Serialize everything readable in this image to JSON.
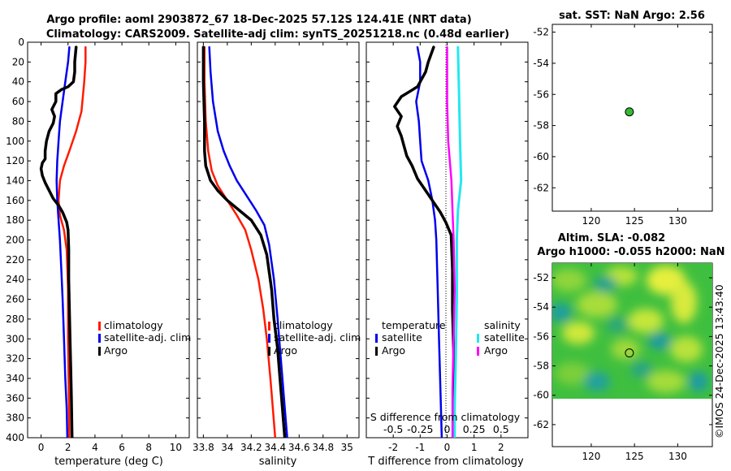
{
  "titles": {
    "line1": "Argo profile: aoml 2903872_67 18-Dec-2025 57.12S 124.41E (NRT data)",
    "line2": "Climatology: CARS2009. Satellite-adj clim: synTS_20251218.nc (0.48d earlier)"
  },
  "footer_stamp": "©IMOS 24-Dec-2025 13:43:40",
  "colors": {
    "climatology": "#ff1a00",
    "satellite": "#0000ee",
    "argo": "#000000",
    "salinity_sat": "#22e8f0",
    "salinity_argo": "#ff00ff"
  },
  "chart_data": [
    {
      "type": "line",
      "id": "temperature",
      "xlabel": "temperature (deg C)",
      "ylabel": "",
      "xlim": [
        -1,
        11
      ],
      "ylim": [
        400,
        0
      ],
      "xticks": [
        0,
        2,
        4,
        6,
        8,
        10
      ],
      "xtick_labels": [
        "0",
        "2",
        "4",
        "6",
        "8",
        "10"
      ],
      "yticks": [
        0,
        20,
        40,
        60,
        80,
        100,
        120,
        140,
        160,
        180,
        200,
        220,
        240,
        260,
        280,
        300,
        320,
        340,
        360,
        380,
        400
      ],
      "ytick_labels": [
        "0",
        "20",
        "40",
        "60",
        "80",
        "100",
        "120",
        "140",
        "160",
        "180",
        "200",
        "220",
        "240",
        "260",
        "280",
        "300",
        "320",
        "340",
        "360",
        "380",
        "400"
      ],
      "legend": [
        "climatology",
        "satellite-adj. clim",
        "Argo"
      ],
      "series": [
        {
          "name": "climatology",
          "color": "#ff1a00",
          "points": [
            [
              3.3,
              5
            ],
            [
              3.3,
              20
            ],
            [
              3.2,
              40
            ],
            [
              3.1,
              55
            ],
            [
              3.0,
              70
            ],
            [
              2.6,
              90
            ],
            [
              2.1,
              110
            ],
            [
              1.7,
              125
            ],
            [
              1.4,
              140
            ],
            [
              1.3,
              160
            ],
            [
              1.4,
              175
            ],
            [
              1.7,
              190
            ],
            [
              1.9,
              210
            ],
            [
              2.0,
              250
            ],
            [
              2.0,
              300
            ],
            [
              2.05,
              350
            ],
            [
              2.1,
              400
            ]
          ]
        },
        {
          "name": "satellite-adj. clim",
          "color": "#0000ee",
          "points": [
            [
              2.1,
              5
            ],
            [
              2.0,
              20
            ],
            [
              1.8,
              40
            ],
            [
              1.6,
              60
            ],
            [
              1.4,
              80
            ],
            [
              1.3,
              100
            ],
            [
              1.2,
              120
            ],
            [
              1.15,
              140
            ],
            [
              1.2,
              160
            ],
            [
              1.3,
              180
            ],
            [
              1.4,
              200
            ],
            [
              1.5,
              230
            ],
            [
              1.6,
              260
            ],
            [
              1.7,
              300
            ],
            [
              1.8,
              340
            ],
            [
              1.9,
              370
            ],
            [
              1.95,
              400
            ]
          ]
        },
        {
          "name": "Argo",
          "color": "#000000",
          "points": [
            [
              2.6,
              5
            ],
            [
              2.5,
              20
            ],
            [
              2.5,
              30
            ],
            [
              2.4,
              40
            ],
            [
              2.0,
              45
            ],
            [
              1.5,
              48
            ],
            [
              1.1,
              52
            ],
            [
              1.1,
              60
            ],
            [
              0.8,
              68
            ],
            [
              1.0,
              75
            ],
            [
              0.9,
              82
            ],
            [
              0.6,
              90
            ],
            [
              0.4,
              100
            ],
            [
              0.3,
              110
            ],
            [
              0.3,
              118
            ],
            [
              0.1,
              122
            ],
            [
              0.0,
              128
            ],
            [
              0.1,
              135
            ],
            [
              0.3,
              142
            ],
            [
              0.6,
              150
            ],
            [
              0.9,
              158
            ],
            [
              1.3,
              165
            ],
            [
              1.6,
              172
            ],
            [
              1.9,
              182
            ],
            [
              2.0,
              190
            ],
            [
              2.05,
              210
            ],
            [
              2.05,
              240
            ],
            [
              2.1,
              270
            ],
            [
              2.15,
              300
            ],
            [
              2.2,
              330
            ],
            [
              2.25,
              360
            ],
            [
              2.3,
              400
            ]
          ]
        }
      ]
    },
    {
      "type": "line",
      "id": "salinity",
      "xlabel": "salinity",
      "xlim": [
        33.75,
        35.1
      ],
      "ylim": [
        400,
        0
      ],
      "xticks": [
        33.8,
        34,
        34.2,
        34.4,
        34.6,
        34.8,
        35
      ],
      "xtick_labels": [
        "33.8",
        "34",
        "34.2",
        "34.4",
        "34.6",
        "34.8",
        "35"
      ],
      "legend": [
        "climatology",
        "satellite-adj. clim",
        "Argo"
      ],
      "series": [
        {
          "name": "climatology",
          "color": "#ff1a00",
          "points": [
            [
              33.81,
              5
            ],
            [
              33.81,
              40
            ],
            [
              33.82,
              80
            ],
            [
              33.84,
              110
            ],
            [
              33.87,
              130
            ],
            [
              33.92,
              145
            ],
            [
              34.0,
              160
            ],
            [
              34.08,
              175
            ],
            [
              34.15,
              190
            ],
            [
              34.2,
              210
            ],
            [
              34.26,
              240
            ],
            [
              34.3,
              270
            ],
            [
              34.33,
              300
            ],
            [
              34.36,
              340
            ],
            [
              34.38,
              370
            ],
            [
              34.4,
              400
            ]
          ]
        },
        {
          "name": "satellite-adj. clim",
          "color": "#0000ee",
          "points": [
            [
              33.85,
              5
            ],
            [
              33.86,
              30
            ],
            [
              33.88,
              60
            ],
            [
              33.92,
              90
            ],
            [
              33.97,
              110
            ],
            [
              34.02,
              125
            ],
            [
              34.08,
              140
            ],
            [
              34.16,
              155
            ],
            [
              34.24,
              170
            ],
            [
              34.31,
              185
            ],
            [
              34.35,
              205
            ],
            [
              34.39,
              240
            ],
            [
              34.42,
              280
            ],
            [
              34.44,
              310
            ],
            [
              34.46,
              340
            ],
            [
              34.48,
              370
            ],
            [
              34.5,
              400
            ]
          ]
        },
        {
          "name": "Argo",
          "color": "#000000",
          "points": [
            [
              33.8,
              5
            ],
            [
              33.8,
              40
            ],
            [
              33.81,
              80
            ],
            [
              33.81,
              110
            ],
            [
              33.82,
              125
            ],
            [
              33.86,
              140
            ],
            [
              33.92,
              150
            ],
            [
              34.0,
              160
            ],
            [
              34.1,
              170
            ],
            [
              34.2,
              180
            ],
            [
              34.28,
              195
            ],
            [
              34.33,
              215
            ],
            [
              34.37,
              250
            ],
            [
              34.39,
              280
            ],
            [
              34.42,
              310
            ],
            [
              34.44,
              340
            ],
            [
              34.46,
              370
            ],
            [
              34.48,
              400
            ]
          ]
        }
      ]
    },
    {
      "type": "line",
      "id": "difference",
      "xlabel": "T difference from climatology",
      "top_axis_label": "S difference from climatology",
      "xlim": [
        -3,
        3
      ],
      "ylim": [
        400,
        0
      ],
      "xticks": [
        -2,
        -1,
        0,
        1,
        2
      ],
      "xtick_labels": [
        "-2",
        "-1",
        "0",
        "1",
        "2"
      ],
      "salinity_ticks": [
        -0.5,
        -0.25,
        0,
        0.25,
        0.5
      ],
      "salinity_tick_labels": [
        "-0.5",
        "-0.25",
        "0",
        "0.25",
        "0.5"
      ],
      "legend_temperature": {
        "title": "temperature",
        "items": [
          "satellite",
          "Argo"
        ]
      },
      "legend_salinity": {
        "title": "salinity",
        "items": [
          "satellite",
          "Argo"
        ]
      },
      "series": [
        {
          "name": "T satellite",
          "color": "#0000ee",
          "points": [
            [
              -1.1,
              5
            ],
            [
              -1.0,
              20
            ],
            [
              -1.0,
              40
            ],
            [
              -1.15,
              60
            ],
            [
              -1.05,
              80
            ],
            [
              -1.0,
              100
            ],
            [
              -0.95,
              120
            ],
            [
              -0.7,
              140
            ],
            [
              -0.55,
              160
            ],
            [
              -0.45,
              180
            ],
            [
              -0.4,
              200
            ],
            [
              -0.35,
              250
            ],
            [
              -0.3,
              300
            ],
            [
              -0.25,
              350
            ],
            [
              -0.2,
              400
            ]
          ]
        },
        {
          "name": "T Argo",
          "color": "#000000",
          "points": [
            [
              -0.5,
              5
            ],
            [
              -0.7,
              20
            ],
            [
              -0.8,
              30
            ],
            [
              -1.1,
              45
            ],
            [
              -1.7,
              55
            ],
            [
              -1.95,
              65
            ],
            [
              -1.7,
              75
            ],
            [
              -1.85,
              85
            ],
            [
              -1.7,
              95
            ],
            [
              -1.6,
              105
            ],
            [
              -1.5,
              115
            ],
            [
              -1.3,
              125
            ],
            [
              -1.1,
              138
            ],
            [
              -0.8,
              150
            ],
            [
              -0.5,
              162
            ],
            [
              -0.25,
              172
            ],
            [
              -0.05,
              182
            ],
            [
              0.15,
              195
            ],
            [
              0.2,
              230
            ],
            [
              0.2,
              270
            ],
            [
              0.25,
              320
            ],
            [
              0.25,
              360
            ],
            [
              0.25,
              400
            ]
          ]
        },
        {
          "name": "S satellite",
          "color": "#22e8f0",
          "points": [
            [
              0.1,
              5
            ],
            [
              0.11,
              50
            ],
            [
              0.12,
              100
            ],
            [
              0.13,
              140
            ],
            [
              0.1,
              170
            ],
            [
              0.09,
              200
            ],
            [
              0.09,
              260
            ],
            [
              0.08,
              320
            ],
            [
              0.07,
              370
            ],
            [
              0.07,
              400
            ]
          ]
        },
        {
          "name": "S Argo",
          "color": "#ff00ff",
          "points": [
            [
              0.0,
              5
            ],
            [
              0.0,
              60
            ],
            [
              0.01,
              100
            ],
            [
              0.04,
              140
            ],
            [
              0.05,
              170
            ],
            [
              0.06,
              200
            ],
            [
              0.07,
              250
            ],
            [
              0.06,
              300
            ],
            [
              0.05,
              350
            ],
            [
              0.05,
              400
            ]
          ]
        }
      ]
    },
    {
      "type": "scatter",
      "id": "sst_map",
      "title": "sat. SST: NaN Argo: 2.56",
      "xlim": [
        115.5,
        134
      ],
      "ylim": [
        -63.5,
        -51.5
      ],
      "xticks": [
        120,
        125,
        130
      ],
      "xtick_labels": [
        "120",
        "125",
        "130"
      ],
      "yticks": [
        -52,
        -54,
        -56,
        -58,
        -60,
        -62
      ],
      "ytick_labels": [
        "-52",
        "-54",
        "-56",
        "-58",
        "-60",
        "-62"
      ],
      "points": [
        {
          "lon": 124.41,
          "lat": -57.12,
          "color": "#33bb33"
        }
      ]
    },
    {
      "type": "heatmap",
      "id": "sla_map",
      "title_line1": "Altim. SLA: -0.082",
      "title_line2": "Argo h1000: -0.055 h2000: NaN",
      "xlim": [
        115.5,
        134
      ],
      "ylim": [
        -63.5,
        -51
      ],
      "data_extent": {
        "lon": [
          115.5,
          134
        ],
        "lat": [
          -60,
          -51
        ]
      },
      "xticks": [
        120,
        125,
        130
      ],
      "xtick_labels": [
        "120",
        "125",
        "130"
      ],
      "yticks": [
        -52,
        -54,
        -56,
        -58,
        -60,
        -62
      ],
      "ytick_labels": [
        "-52",
        "-54",
        "-56",
        "-58",
        "-60",
        "-62"
      ],
      "points": [
        {
          "lon": 124.41,
          "lat": -57.12
        }
      ]
    }
  ]
}
